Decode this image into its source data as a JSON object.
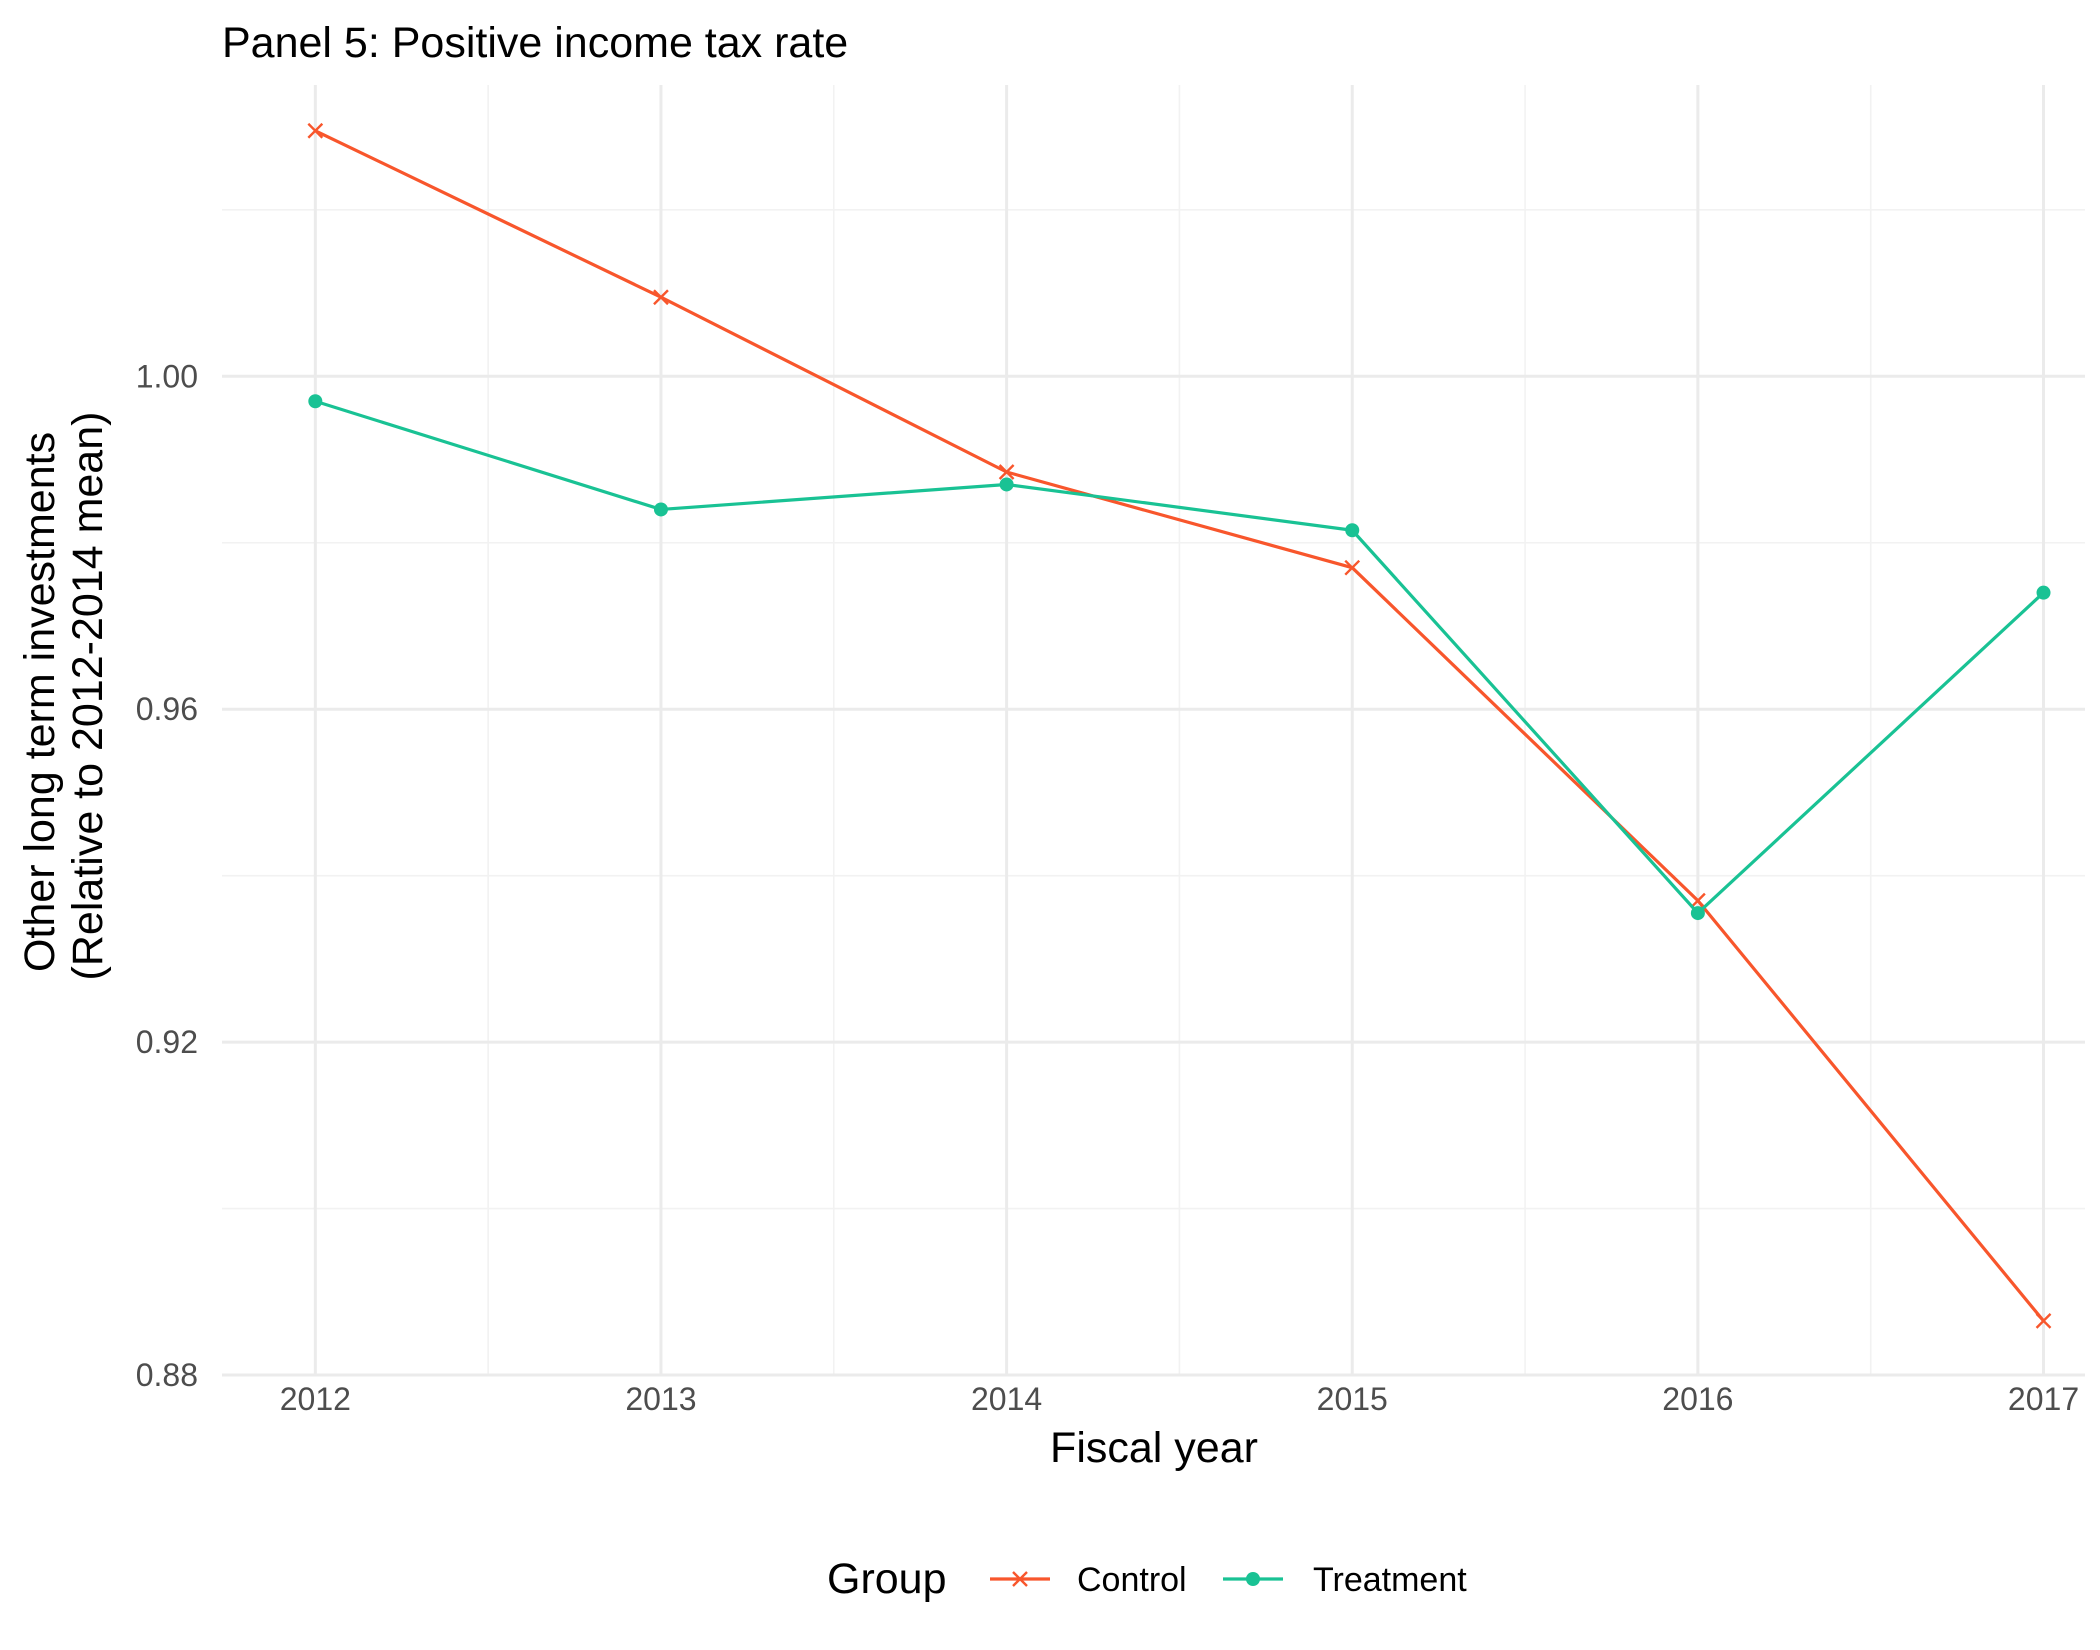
{
  "chart_data": {
    "type": "line",
    "title": "Panel 5: Positive income tax rate",
    "xlabel": "Fiscal year",
    "ylabel_lines": [
      "Other long term investments",
      "(Relative to 2012-2014 mean)"
    ],
    "x": [
      2012,
      2013,
      2014,
      2015,
      2016,
      2017
    ],
    "x_ticks": [
      "2012",
      "2013",
      "2014",
      "2015",
      "2016",
      "2017"
    ],
    "y_ticks": [
      "0.88",
      "0.92",
      "0.96",
      "1.00"
    ],
    "ylim": [
      0.88,
      1.035
    ],
    "grid": true,
    "legend": {
      "title": "Group",
      "position": "bottom"
    },
    "series": [
      {
        "name": "Control",
        "color": "#F8562C",
        "marker": "cross",
        "values": [
          1.0295,
          1.0095,
          0.9885,
          0.977,
          0.937,
          0.8865
        ]
      },
      {
        "name": "Treatment",
        "color": "#19C294",
        "marker": "dot",
        "values": [
          0.997,
          0.984,
          0.987,
          0.9815,
          0.9355,
          0.974
        ]
      }
    ]
  }
}
